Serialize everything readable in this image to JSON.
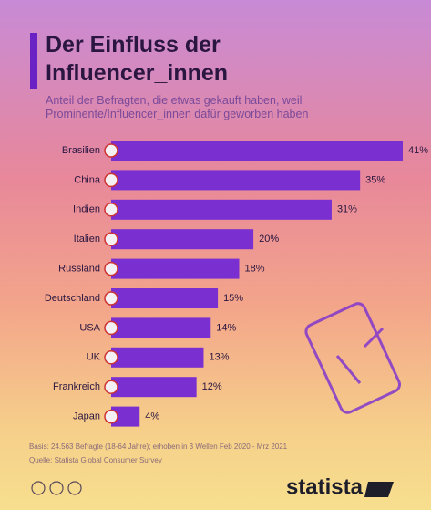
{
  "chart_data": {
    "type": "bar",
    "orientation": "horizontal",
    "title": "Der Einfluss der Influencer_innen",
    "subtitle": "Anteil der Befragten, die etwas gekauft haben, weil Prominente/Influencer_innen dafür geworben haben",
    "categories": [
      "Brasilien",
      "China",
      "Indien",
      "Italien",
      "Russland",
      "Deutschland",
      "USA",
      "UK",
      "Frankreich",
      "Japan"
    ],
    "values": [
      41,
      35,
      31,
      20,
      18,
      15,
      14,
      13,
      12,
      4
    ],
    "value_labels": [
      "41%",
      "35%",
      "31%",
      "20%",
      "18%",
      "15%",
      "14%",
      "13%",
      "12%",
      "4%"
    ],
    "color": "#7a2fd0",
    "xlim": [
      0,
      41
    ],
    "notes": [
      "Basis: 24.563 Befragte (18-64 Jahre); erhoben in 3 Wellen Feb 2020 - Mrz 2021",
      "Quelle: Statista Global Consumer Survey"
    ],
    "brand": "statista"
  }
}
